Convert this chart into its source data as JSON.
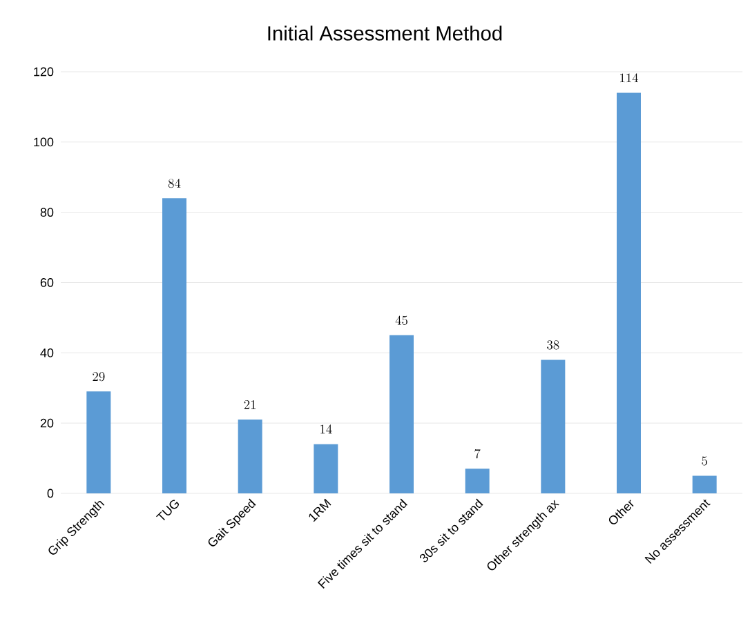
{
  "chart_data": {
    "type": "bar",
    "title": "Initial Assessment Method",
    "categories": [
      "Grip Strength",
      "TUG",
      "Gait Speed",
      "1RM",
      "Five times sit to stand",
      "30s sit to stand",
      "Other strength ax",
      "Other",
      "No assessment"
    ],
    "values": [
      29,
      84,
      21,
      14,
      45,
      7,
      38,
      114,
      5
    ],
    "color": "#5b9bd5",
    "ylim": [
      0,
      120
    ],
    "yticks": [
      0,
      20,
      40,
      60,
      80,
      100,
      120
    ],
    "grid": "y",
    "data_labels": true
  }
}
